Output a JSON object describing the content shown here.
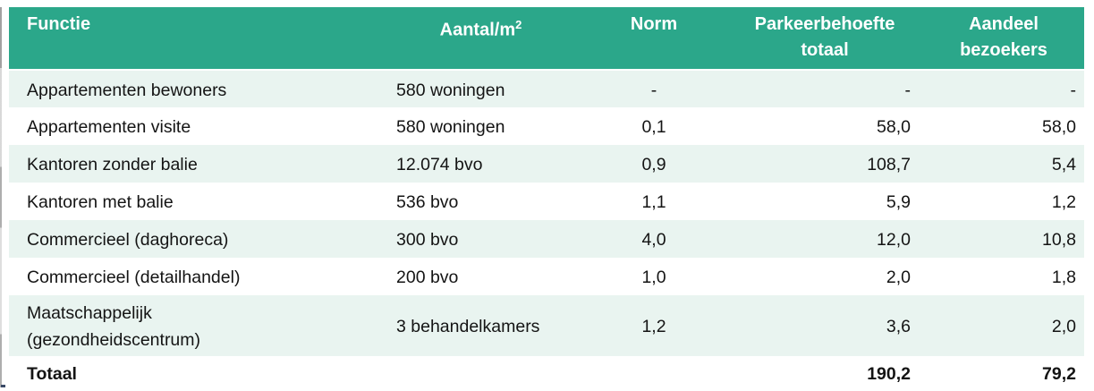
{
  "colors": {
    "header_bg": "#2ba78a",
    "row_alt_bg": "#e9f4f0",
    "header_text": "#ffffff",
    "body_text": "#141414",
    "page_bg": "#ffffff"
  },
  "table": {
    "columns": [
      {
        "id": "functie",
        "lines": [
          "Functie"
        ]
      },
      {
        "id": "aantal-m2",
        "lines": [
          "Aantal/m"
        ],
        "sup": "2"
      },
      {
        "id": "norm",
        "lines": [
          "Norm"
        ]
      },
      {
        "id": "parkeerbehoefte",
        "lines": [
          "Parkeerbehoefte",
          "totaal"
        ]
      },
      {
        "id": "aandeel",
        "lines": [
          "Aandeel",
          "bezoekers"
        ]
      }
    ],
    "rows": [
      {
        "cells": [
          "Appartementen bewoners",
          "580 woningen",
          "-",
          "-",
          "-"
        ]
      },
      {
        "cells": [
          "Appartementen visite",
          "580 woningen",
          "0,1",
          "58,0",
          "58,0"
        ]
      },
      {
        "cells": [
          "Kantoren zonder balie",
          "12.074 bvo",
          "0,9",
          "108,7",
          "5,4"
        ]
      },
      {
        "cells": [
          "Kantoren met balie",
          "536 bvo",
          "1,1",
          "5,9",
          "1,2"
        ]
      },
      {
        "cells": [
          "Commercieel (daghoreca)",
          "300 bvo",
          "4,0",
          "12,0",
          "10,8"
        ]
      },
      {
        "cells": [
          "Commercieel (detailhandel)",
          "200 bvo",
          "1,0",
          "2,0",
          "1,8"
        ]
      },
      {
        "cells": [
          "Maatschappelijk (gezondheidscentrum)",
          "3 behandelkamers",
          "1,2",
          "3,6",
          "2,0"
        ]
      }
    ],
    "total_row": {
      "cells": [
        "Totaal",
        "",
        "",
        "190,2",
        "79,2"
      ]
    }
  }
}
